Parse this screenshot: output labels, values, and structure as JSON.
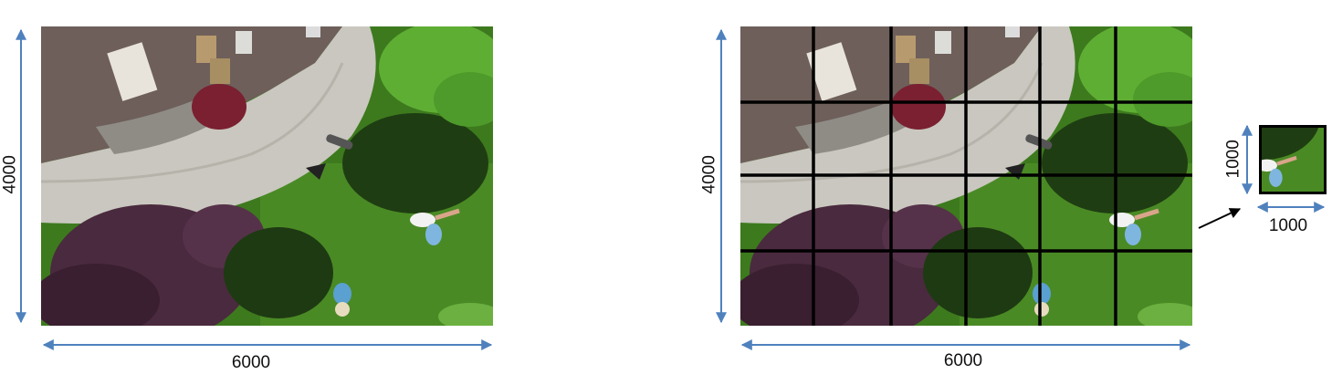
{
  "left_image": {
    "height_label": "4000",
    "width_label": "6000"
  },
  "right_image": {
    "height_label": "4000",
    "width_label": "6000"
  },
  "tile": {
    "height_label": "1000",
    "width_label": "1000"
  },
  "colors": {
    "arrow": "#4f81bd",
    "grid": "#000000",
    "grass": "#3d7a1e",
    "patio": "#c9c7bf",
    "deck": "#6e5f5a",
    "shrub": "#4a2a3e"
  },
  "icons": [
    "double-arrow-icon",
    "pointer-arrow-icon"
  ]
}
